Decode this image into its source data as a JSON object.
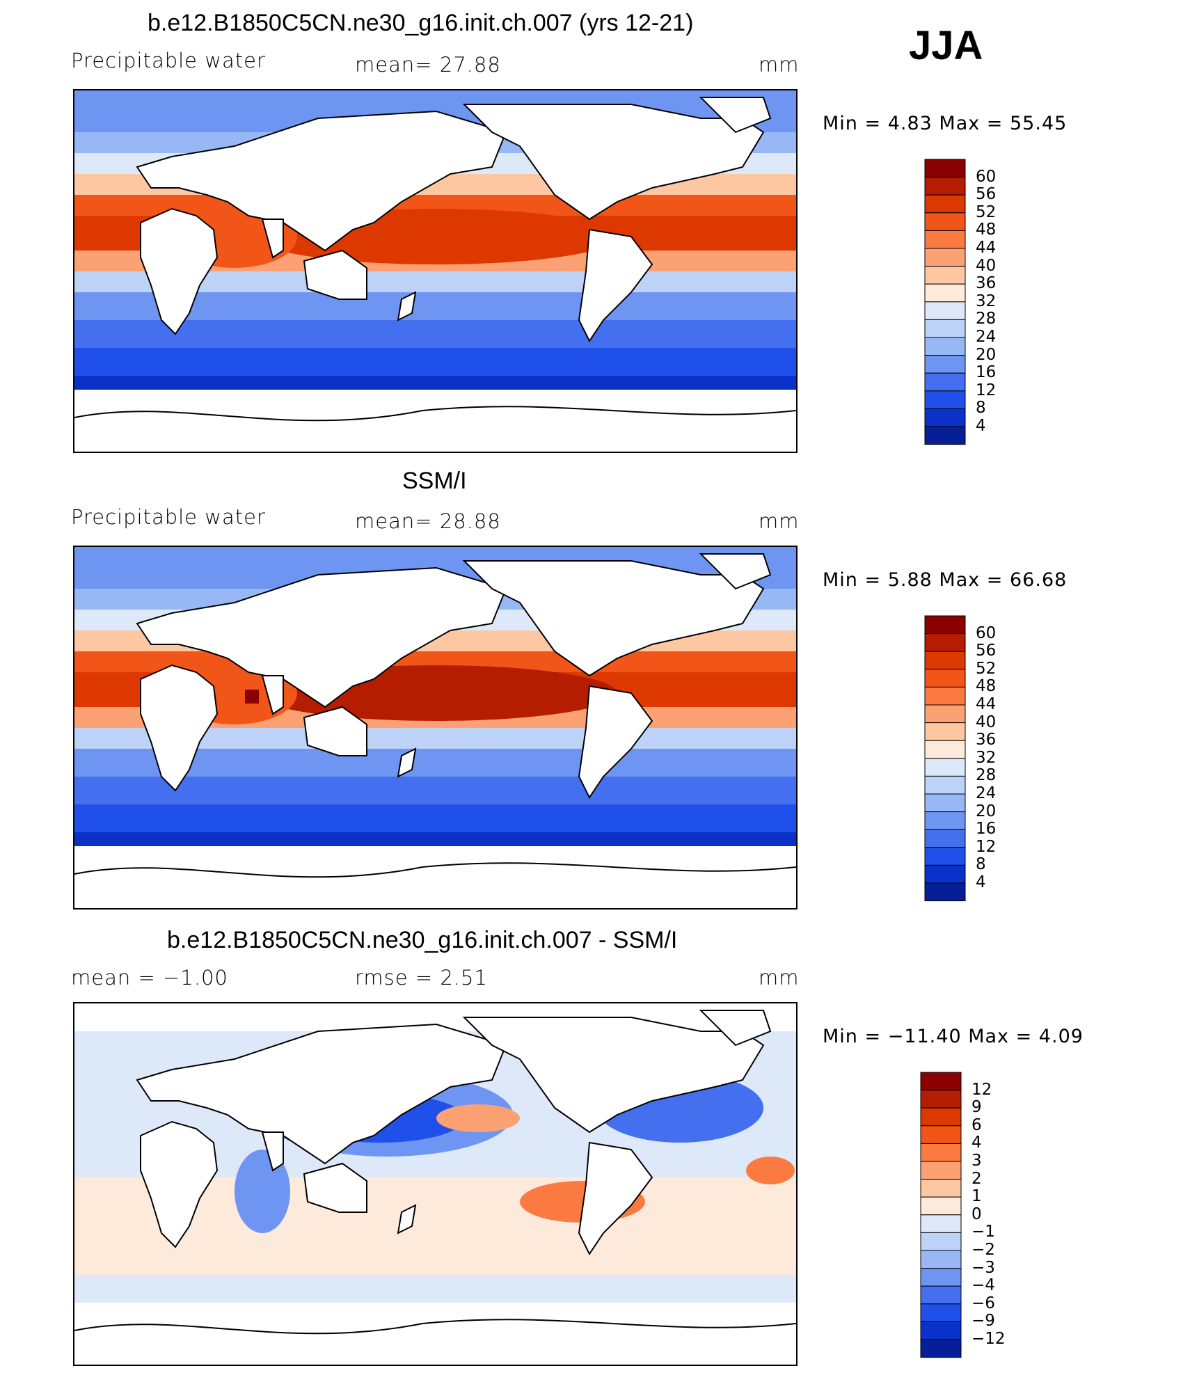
{
  "season": "JJA",
  "panels": [
    {
      "title": "b.e12.B1850C5CN.ne30_g16.init.ch.007 (yrs 12-21)",
      "left_label": "Precipitable  water",
      "center_label": "mean=   27.88",
      "units": "mm",
      "minmax": "Min  =     4.83  Max  =    55.45",
      "field": "model"
    },
    {
      "title": "SSM/I",
      "left_label": "Precipitable  water",
      "center_label": "mean=   28.88",
      "units": "mm",
      "minmax": "Min  =     5.88  Max  =    66.68",
      "field": "obs"
    },
    {
      "title": "b.e12.B1850C5CN.ne30_g16.init.ch.007 - SSM/I",
      "left_label": "mean  =    −1.00",
      "center_label": "rmse  =     2.51",
      "units": "mm",
      "minmax": "Min  =  −11.40  Max  =     4.09",
      "field": "diff"
    }
  ],
  "colorbars": {
    "abs": {
      "labels": [
        "60",
        "56",
        "52",
        "48",
        "44",
        "40",
        "36",
        "32",
        "28",
        "24",
        "20",
        "16",
        "12",
        "8",
        "4"
      ],
      "colors": [
        "#8b0000",
        "#b51d00",
        "#dc3800",
        "#f25518",
        "#fb7a42",
        "#fca173",
        "#fdc7a2",
        "#feeadb",
        "#dde9f8",
        "#bcd3f7",
        "#97b7f5",
        "#6f95f2",
        "#4470ef",
        "#2050ea",
        "#0a32c8",
        "#061f96"
      ]
    },
    "diff": {
      "labels": [
        "12",
        "9",
        "6",
        "4",
        "3",
        "2",
        "1",
        "0",
        "−1",
        "−2",
        "−3",
        "−4",
        "−6",
        "−9",
        "−12"
      ],
      "colors": [
        "#8b0000",
        "#b51d00",
        "#dc3800",
        "#f25518",
        "#fb7a42",
        "#fca173",
        "#fdc7a2",
        "#feeadb",
        "#dde9f8",
        "#bcd3f7",
        "#97b7f5",
        "#6f95f2",
        "#4470ef",
        "#2050ea",
        "#0a32c8",
        "#061f96"
      ]
    }
  }
}
